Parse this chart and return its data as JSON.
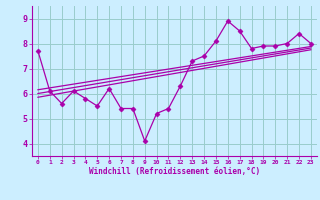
{
  "xlabel": "Windchill (Refroidissement éolien,°C)",
  "bg_color": "#cceeff",
  "line_color": "#aa00aa",
  "grid_color": "#99cccc",
  "xlim": [
    -0.5,
    23.5
  ],
  "ylim": [
    3.5,
    9.5
  ],
  "yticks": [
    4,
    5,
    6,
    7,
    8,
    9
  ],
  "xticks": [
    0,
    1,
    2,
    3,
    4,
    5,
    6,
    7,
    8,
    9,
    10,
    11,
    12,
    13,
    14,
    15,
    16,
    17,
    18,
    19,
    20,
    21,
    22,
    23
  ],
  "main_data_x": [
    0,
    1,
    2,
    3,
    4,
    5,
    6,
    7,
    8,
    9,
    10,
    11,
    12,
    13,
    14,
    15,
    16,
    17,
    18,
    19,
    20,
    21,
    22,
    23
  ],
  "main_data_y": [
    7.7,
    6.1,
    5.6,
    6.1,
    5.8,
    5.5,
    6.2,
    5.4,
    5.4,
    4.1,
    5.2,
    5.4,
    6.3,
    7.3,
    7.5,
    8.1,
    8.9,
    8.5,
    7.8,
    7.9,
    7.9,
    8.0,
    8.4,
    8.0
  ],
  "reg_line_x": [
    0,
    23
  ],
  "reg_lines": [
    [
      5.85,
      7.75
    ],
    [
      6.0,
      7.82
    ],
    [
      6.15,
      7.88
    ]
  ]
}
